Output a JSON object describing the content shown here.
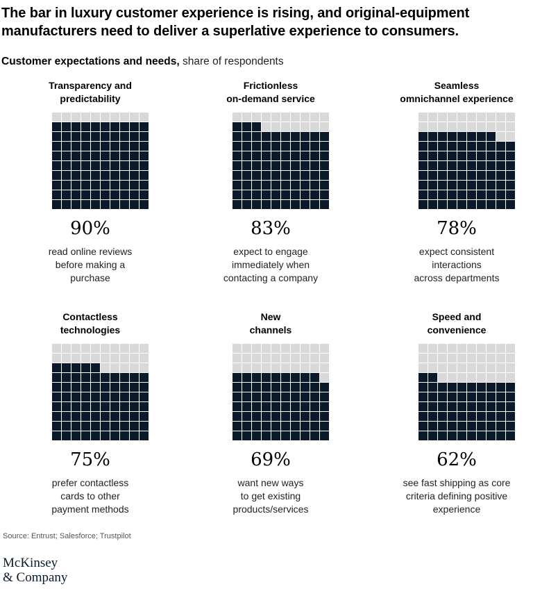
{
  "title": "The bar in luxury customer experience is rising, and original-equipment manufacturers need to deliver a superlative experience to consumers.",
  "subtitle_bold": "Customer expectations and needs,",
  "subtitle_rest": " share of respondents",
  "source": "Source: Entrust; Salesforce; Trustpilot",
  "logo": {
    "line1": "McKinsey",
    "line2": "& Company"
  },
  "colors": {
    "filled": "#0b1a2a",
    "empty": "#d9d9d9"
  },
  "chart_data": {
    "type": "waffle",
    "grid": "10x10",
    "panels": [
      {
        "label_line1": "Transparency and",
        "label_line2": "predictability",
        "value": 90,
        "value_label": "90%",
        "desc_line1": "read online reviews",
        "desc_line2": "before making a",
        "desc_line3": "purchase"
      },
      {
        "label_line1": "Frictionless",
        "label_line2": "on-demand service",
        "value": 83,
        "value_label": "83%",
        "desc_line1": "expect to engage",
        "desc_line2": "immediately when",
        "desc_line3": "contacting a company"
      },
      {
        "label_line1": "Seamless",
        "label_line2": "omnichannel experience",
        "value": 78,
        "value_label": "78%",
        "desc_line1": "expect consistent",
        "desc_line2": "interactions",
        "desc_line3": "across departments"
      },
      {
        "label_line1": "Contactless",
        "label_line2": "technologies",
        "value": 75,
        "value_label": "75%",
        "desc_line1": "prefer contactless",
        "desc_line2": "cards to other",
        "desc_line3": "payment methods"
      },
      {
        "label_line1": "New",
        "label_line2": "channels",
        "value": 69,
        "value_label": "69%",
        "desc_line1": "want new ways",
        "desc_line2": "to get existing",
        "desc_line3": "products/services"
      },
      {
        "label_line1": "Speed and",
        "label_line2": "convenience",
        "value": 62,
        "value_label": "62%",
        "desc_line1": "see fast shipping as core",
        "desc_line2": "criteria defining positive",
        "desc_line3": "experience"
      }
    ]
  }
}
